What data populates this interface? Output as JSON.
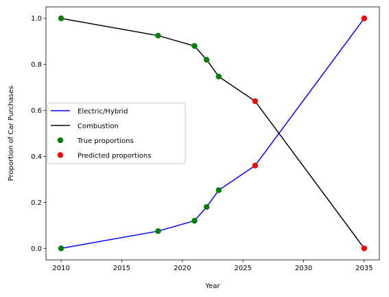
{
  "chart_data": {
    "type": "line",
    "xlabel": "Year",
    "ylabel": "Proportion of Car Purchases",
    "xlim": [
      2008.75,
      2036.25
    ],
    "ylim": [
      -0.05,
      1.05
    ],
    "xticks": [
      2010,
      2015,
      2020,
      2025,
      2030,
      2035
    ],
    "yticks": [
      0.0,
      0.2,
      0.4,
      0.6,
      0.8,
      1.0
    ],
    "xtick_labels": [
      "2010",
      "2015",
      "2020",
      "2025",
      "2030",
      "2035"
    ],
    "ytick_labels": [
      "0.0",
      "0.2",
      "0.4",
      "0.6",
      "0.8",
      "1.0"
    ],
    "legend_position": "center-left",
    "series": [
      {
        "name": "Electric/Hybrid",
        "kind": "line",
        "color": "#0000ff",
        "x": [
          2010,
          2018,
          2021,
          2022,
          2023,
          2026,
          2035
        ],
        "y": [
          0.0,
          0.075,
          0.12,
          0.18,
          0.253,
          0.36,
          1.0
        ]
      },
      {
        "name": "Combustion",
        "kind": "line",
        "color": "#000000",
        "x": [
          2010,
          2018,
          2021,
          2022,
          2023,
          2026,
          2035
        ],
        "y": [
          1.0,
          0.925,
          0.88,
          0.82,
          0.747,
          0.64,
          0.0
        ]
      },
      {
        "name": "True proportions",
        "kind": "scatter",
        "color": "#008000",
        "x": [
          2010,
          2018,
          2021,
          2022,
          2023,
          2010,
          2018,
          2021,
          2022,
          2023
        ],
        "y": [
          0.0,
          0.075,
          0.12,
          0.18,
          0.253,
          1.0,
          0.925,
          0.88,
          0.82,
          0.747
        ]
      },
      {
        "name": "Predicted proportions",
        "kind": "scatter",
        "color": "#ff0000",
        "x": [
          2026,
          2035,
          2026,
          2035
        ],
        "y": [
          0.36,
          1.0,
          0.64,
          0.0
        ]
      }
    ]
  }
}
